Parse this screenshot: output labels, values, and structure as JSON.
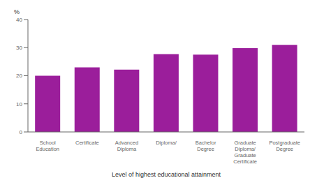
{
  "chart_data": {
    "type": "bar",
    "categories": [
      "School\nEducation",
      "Certificate",
      "Advanced\nDiploma",
      "Diploma/",
      "Bachelor\nDegree",
      "Graduate Diploma/\nGraduate Certificate",
      "Postgraduate\nDegree"
    ],
    "values": [
      20.0,
      23.0,
      22.2,
      27.7,
      27.5,
      29.8,
      31.0
    ],
    "color": "#9B1E9B",
    "ylim": [
      0,
      40
    ],
    "yticks": [
      0,
      10,
      20,
      30,
      40
    ],
    "ylabel": "%",
    "xlabel": "Level of highest educational attainment",
    "grid": false
  }
}
